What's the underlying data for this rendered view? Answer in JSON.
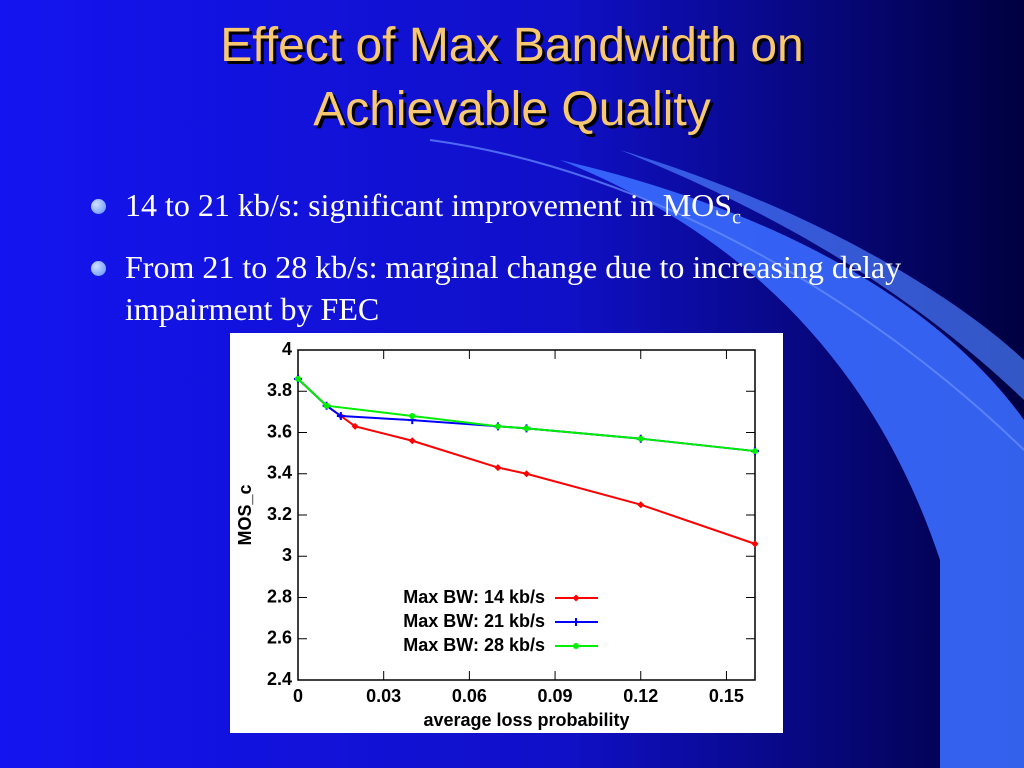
{
  "slide": {
    "title": "Effect of Max Bandwidth on Achievable Quality",
    "bullets": [
      {
        "text": "14 to 21 kb/s: significant improvement in MOS",
        "subscript": "c"
      },
      {
        "text": "From 21 to 28 kb/s: marginal change due to increasing delay impairment by FEC"
      }
    ]
  },
  "chart_data": {
    "type": "line",
    "x_label": "average loss probability",
    "y_label": "MOS_c",
    "xlim": [
      0,
      0.16
    ],
    "ylim": [
      2.4,
      4
    ],
    "xticks": [
      0,
      0.03,
      0.06,
      0.09,
      0.12,
      0.15
    ],
    "yticks": [
      2.4,
      2.6,
      2.8,
      3,
      3.2,
      3.4,
      3.6,
      3.8,
      4
    ],
    "legend": "bottom",
    "series": [
      {
        "name": "Max BW: 14 kb/s",
        "color": "#ff0000",
        "marker": "diamond",
        "x": [
          0,
          0.01,
          0.015,
          0.02,
          0.04,
          0.07,
          0.08,
          0.12,
          0.16
        ],
        "values": [
          3.86,
          3.73,
          3.68,
          3.63,
          3.56,
          3.43,
          3.4,
          3.25,
          3.06
        ]
      },
      {
        "name": "Max BW: 21 kb/s",
        "color": "#0000ff",
        "marker": "plus",
        "x": [
          0,
          0.01,
          0.015,
          0.04,
          0.07,
          0.08,
          0.12,
          0.16
        ],
        "values": [
          3.86,
          3.73,
          3.68,
          3.66,
          3.63,
          3.62,
          3.57,
          3.51
        ]
      },
      {
        "name": "Max BW: 28 kb/s",
        "color": "#00ee00",
        "marker": "circle",
        "x": [
          0,
          0.01,
          0.04,
          0.07,
          0.08,
          0.12,
          0.16
        ],
        "values": [
          3.86,
          3.73,
          3.68,
          3.63,
          3.62,
          3.57,
          3.51
        ]
      }
    ]
  }
}
